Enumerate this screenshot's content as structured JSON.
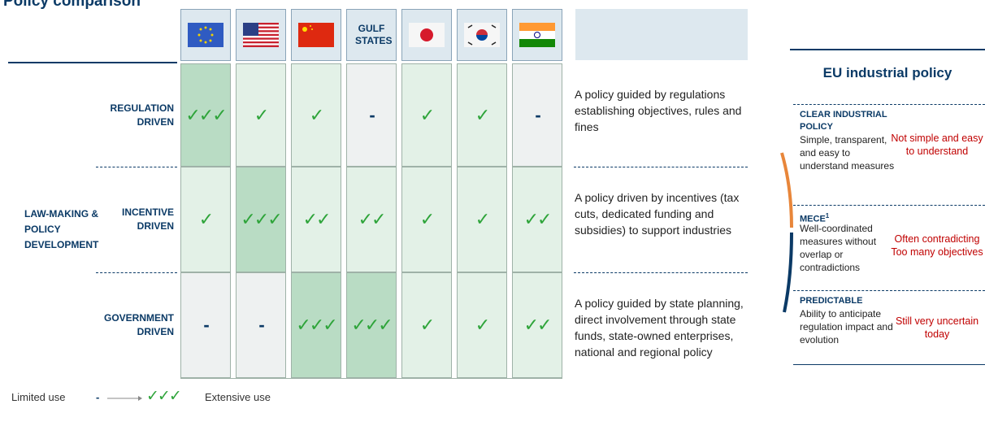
{
  "title": "Policy comparison",
  "table": {
    "gulf_header": "GULF STATES",
    "group_label": "LAW-MAKING & POLICY DEVELOPMENT",
    "rows": [
      {
        "label": "REGULATION DRIVEN",
        "cells": [
          "✓✓✓",
          "✓",
          "✓",
          "-",
          "✓",
          "✓",
          "-"
        ],
        "description": "A policy guided by regulations establishing objectives, rules and fines"
      },
      {
        "label": "INCENTIVE DRIVEN",
        "cells": [
          "✓",
          "✓✓✓",
          "✓✓",
          "✓✓",
          "✓",
          "✓",
          "✓✓"
        ],
        "description": "A policy driven by incentives (tax cuts, dedicated funding and subsidies) to support industries"
      },
      {
        "label": "GOVERNMENT DRIVEN",
        "cells": [
          "-",
          "-",
          "✓✓✓",
          "✓✓✓",
          "✓",
          "✓",
          "✓✓"
        ],
        "description": "A policy guided by state planning, direct involvement through state funds, state-owned enterprises, national and regional policy"
      }
    ]
  },
  "panel": {
    "title": "EU industrial policy",
    "items": [
      {
        "title": "CLEAR INDUSTRIAL POLICY",
        "description": "Simple, transparent, and easy to understand measures",
        "assessment": [
          "Not simple and easy to understand"
        ]
      },
      {
        "title": "MECE",
        "footnote": "1",
        "description": "Well-coordinated measures without overlap or contradictions",
        "assessment": [
          "Often contradicting",
          "Too many objectives"
        ]
      },
      {
        "title": "PREDICTABLE",
        "description": "Ability to anticipate regulation impact and evolution",
        "assessment": [
          "Still very uncertain today"
        ]
      }
    ]
  },
  "legend": {
    "low_label": "Limited use",
    "low_symbol": "-",
    "high_symbol": "✓✓✓",
    "high_label": "Extensive use"
  }
}
